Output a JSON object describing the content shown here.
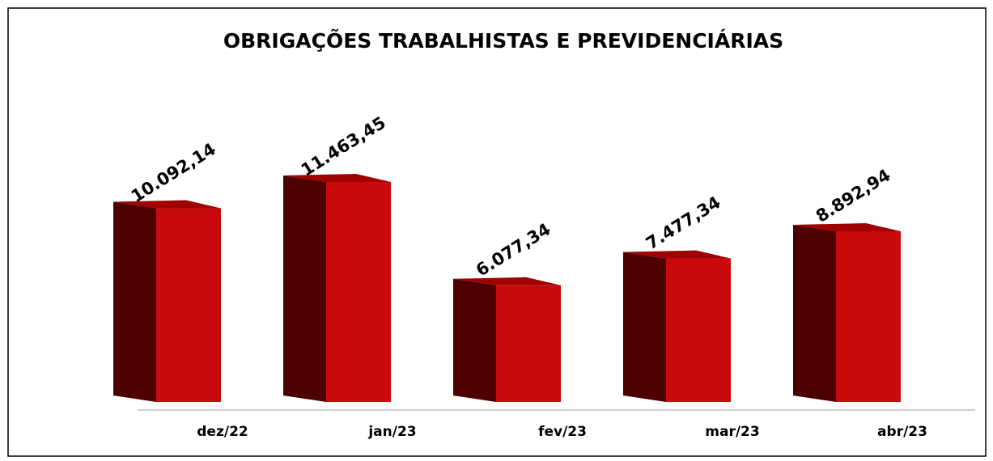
{
  "chart_data": {
    "type": "bar3d",
    "title": "OBRIGAÇÕES TRABALHISTAS E PREVIDENCIÁRIAS",
    "categories": [
      "dez/22",
      "jan/23",
      "fev/23",
      "mar/23",
      "abr/23"
    ],
    "values": [
      10092.14,
      11463.45,
      6077.34,
      7477.34,
      8892.94
    ],
    "value_labels": [
      "10.092,14",
      "11.463,45",
      "6.077,34",
      "7.477,34",
      "8.892,94"
    ],
    "color": "#c80a0a"
  }
}
